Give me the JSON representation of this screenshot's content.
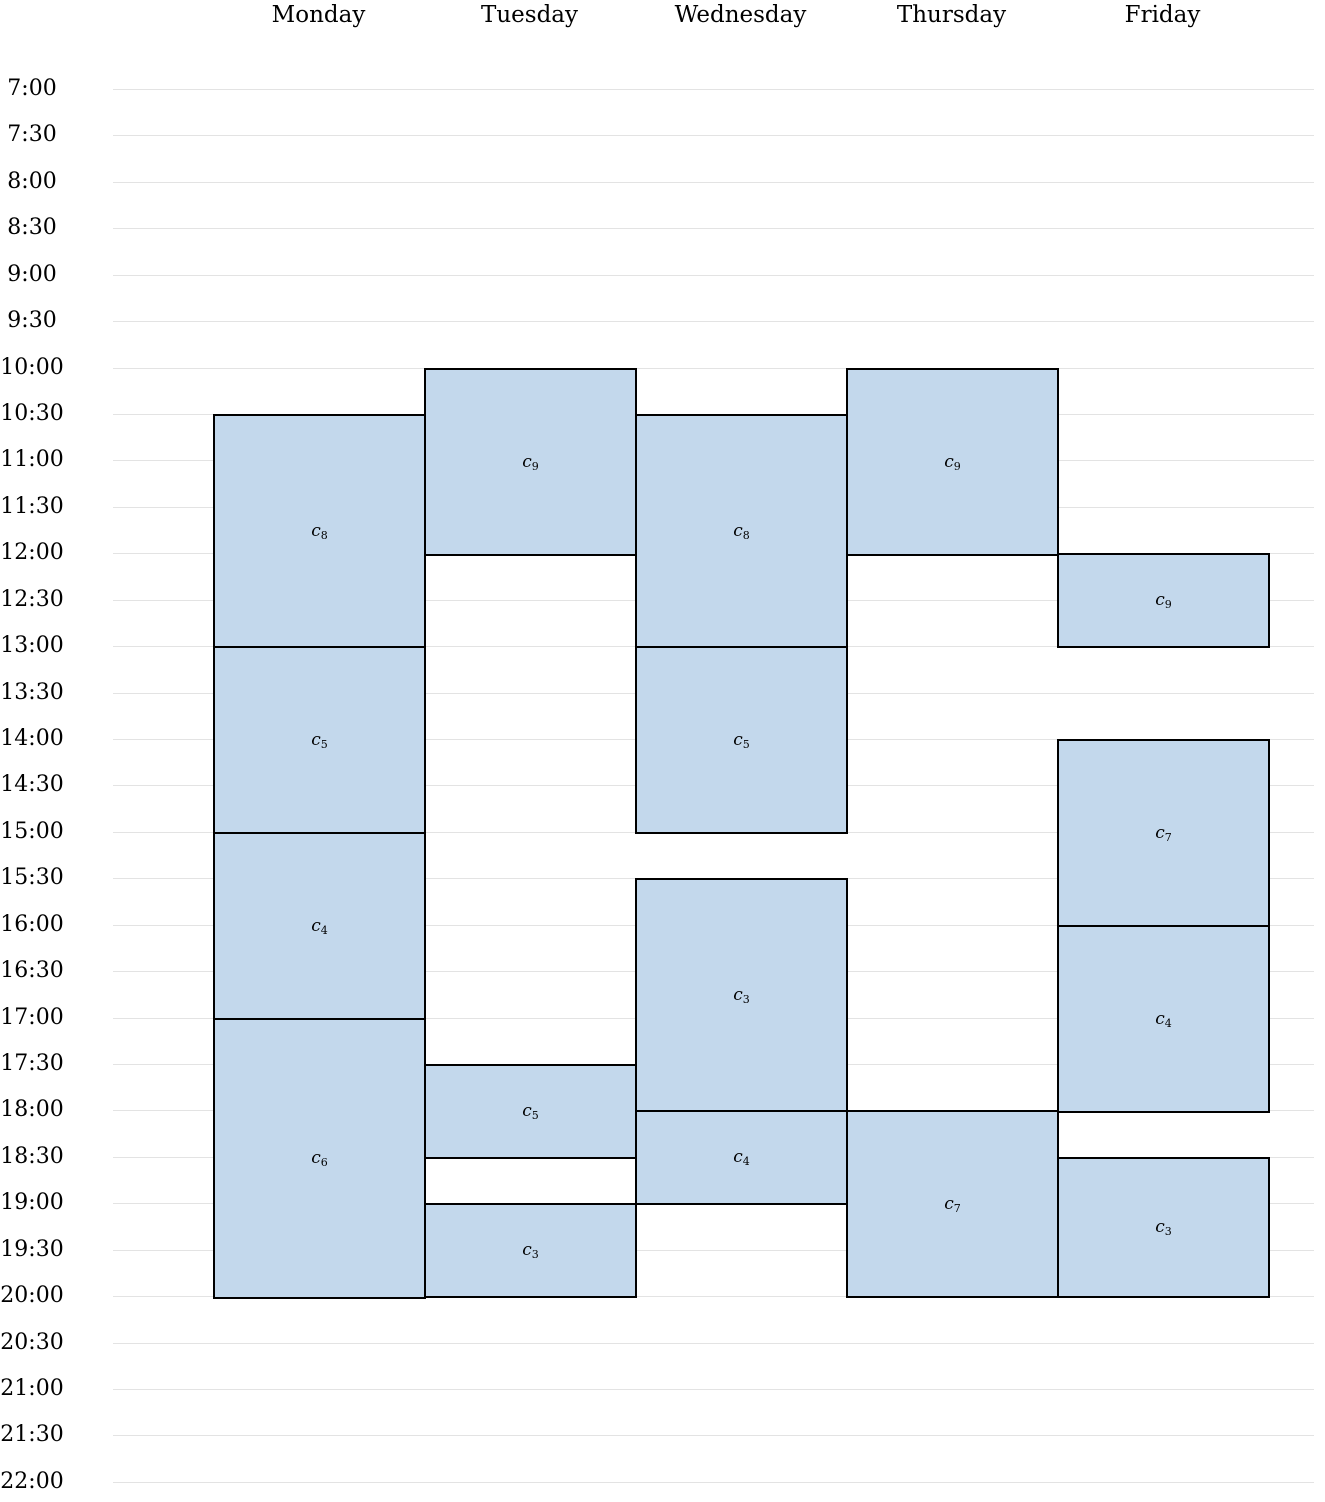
{
  "days": [
    "Monday",
    "Tuesday",
    "Wednesday",
    "Thursday",
    "Friday"
  ],
  "times": [
    "7:00",
    "7:30",
    "8:00",
    "8:30",
    "9:00",
    "9:30",
    "10:00",
    "10:30",
    "11:00",
    "11:30",
    "12:00",
    "12:30",
    "13:00",
    "13:30",
    "14:00",
    "14:30",
    "15:00",
    "15:30",
    "16:00",
    "16:30",
    "17:00",
    "17:30",
    "18:00",
    "18:30",
    "19:00",
    "19:30",
    "20:00",
    "20:30",
    "21:00",
    "21:30",
    "22:00"
  ],
  "colors": {
    "block_fill": "#c3d8ec",
    "block_border": "#000000",
    "grid": "#e3e3e3"
  },
  "sessions": [
    {
      "day": "Monday",
      "start": "10:30",
      "end": "13:00",
      "course": "c",
      "index": "8"
    },
    {
      "day": "Monday",
      "start": "13:00",
      "end": "15:00",
      "course": "c",
      "index": "5"
    },
    {
      "day": "Monday",
      "start": "15:00",
      "end": "17:00",
      "course": "c",
      "index": "4"
    },
    {
      "day": "Monday",
      "start": "17:00",
      "end": "20:00",
      "course": "c",
      "index": "6"
    },
    {
      "day": "Tuesday",
      "start": "10:00",
      "end": "12:00",
      "course": "c",
      "index": "9"
    },
    {
      "day": "Tuesday",
      "start": "17:30",
      "end": "18:30",
      "course": "c",
      "index": "5"
    },
    {
      "day": "Tuesday",
      "start": "19:00",
      "end": "20:00",
      "course": "c",
      "index": "3"
    },
    {
      "day": "Wednesday",
      "start": "10:30",
      "end": "13:00",
      "course": "c",
      "index": "8"
    },
    {
      "day": "Wednesday",
      "start": "13:00",
      "end": "15:00",
      "course": "c",
      "index": "5"
    },
    {
      "day": "Wednesday",
      "start": "15:30",
      "end": "18:00",
      "course": "c",
      "index": "3"
    },
    {
      "day": "Wednesday",
      "start": "18:00",
      "end": "19:00",
      "course": "c",
      "index": "4"
    },
    {
      "day": "Thursday",
      "start": "10:00",
      "end": "12:00",
      "course": "c",
      "index": "9"
    },
    {
      "day": "Thursday",
      "start": "18:00",
      "end": "20:00",
      "course": "c",
      "index": "7"
    },
    {
      "day": "Friday",
      "start": "12:00",
      "end": "13:00",
      "course": "c",
      "index": "9"
    },
    {
      "day": "Friday",
      "start": "14:00",
      "end": "16:00",
      "course": "c",
      "index": "7"
    },
    {
      "day": "Friday",
      "start": "16:00",
      "end": "18:00",
      "course": "c",
      "index": "4"
    },
    {
      "day": "Friday",
      "start": "18:30",
      "end": "20:00",
      "course": "c",
      "index": "3"
    }
  ]
}
